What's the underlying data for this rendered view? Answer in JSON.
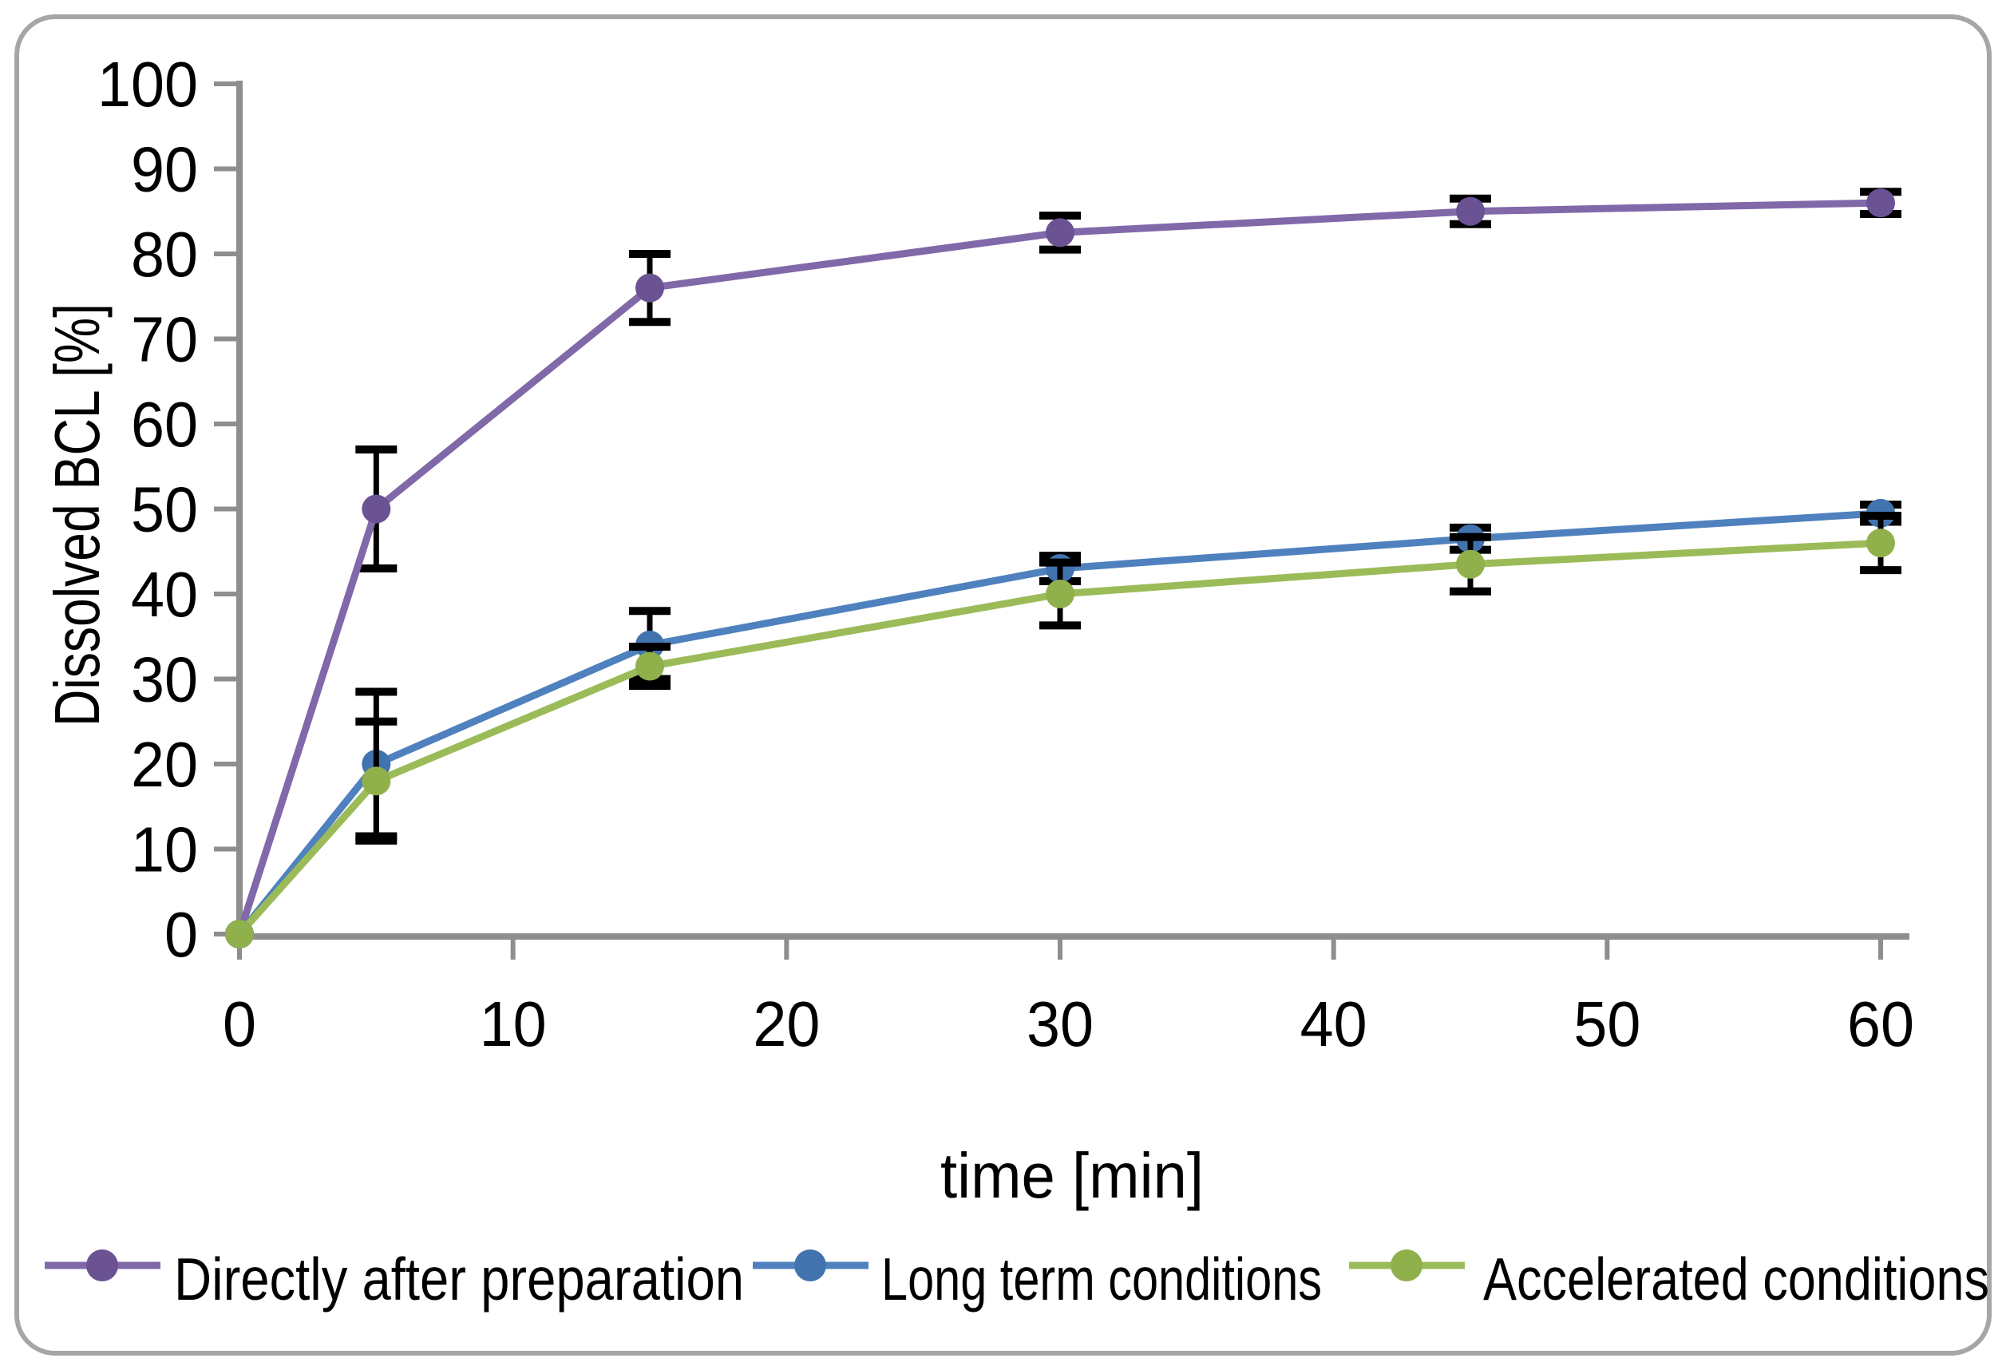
{
  "figure": {
    "frame_border_color": "#a6a6a6",
    "background_color": "#ffffff"
  },
  "chart_data": {
    "type": "line",
    "x": [
      0,
      5,
      15,
      30,
      45,
      60
    ],
    "series": [
      {
        "name": "Directly after preparation",
        "color": "#8168a9",
        "marker_color": "#6b5292",
        "values": [
          0,
          50,
          76,
          82.5,
          85,
          86
        ],
        "errors": [
          0,
          7,
          4,
          2,
          1.5,
          1.3
        ]
      },
      {
        "name": "Long term conditions",
        "color": "#4e81bd",
        "marker_color": "#4173af",
        "values": [
          0,
          20,
          34,
          43,
          46.5,
          49.5
        ],
        "errors": [
          0,
          8.5,
          4,
          1.5,
          1.3,
          1
        ]
      },
      {
        "name": "Accelerated conditions",
        "color": "#9bbb59",
        "marker_color": "#8fb04b",
        "values": [
          0,
          18,
          31.5,
          40,
          43.5,
          46
        ],
        "errors": [
          0,
          7,
          2.3,
          3.7,
          3.2,
          3.2
        ]
      }
    ],
    "title": "",
    "xlabel": "time [min]",
    "ylabel": "Dissolved BCL [%]",
    "xticks": [
      0,
      10,
      20,
      30,
      40,
      50,
      60
    ],
    "yticks": [
      0,
      10,
      20,
      30,
      40,
      50,
      60,
      70,
      80,
      90,
      100
    ],
    "xlim": [
      0,
      61
    ],
    "ylim": [
      0,
      100
    ],
    "grid": false,
    "legend_position": "bottom",
    "marker_shape": "circle",
    "error_bar_color": "#000000",
    "axis_color": "#8e8e8e"
  }
}
